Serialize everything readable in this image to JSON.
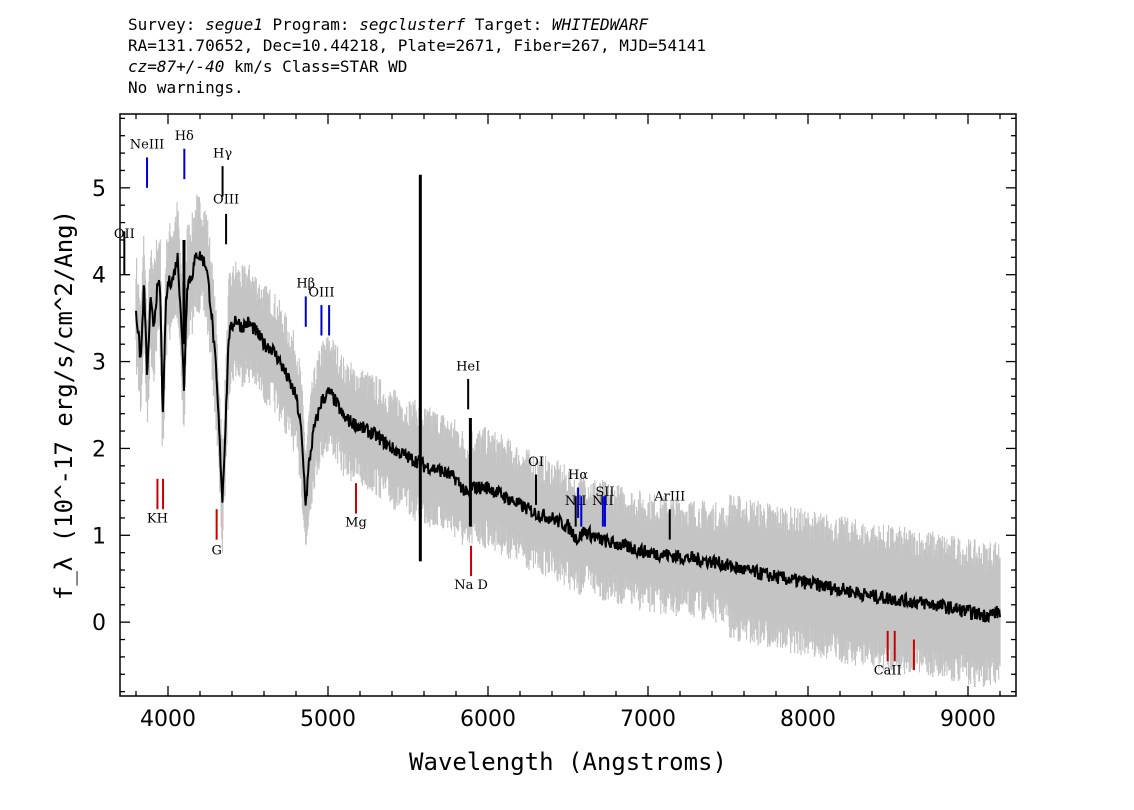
{
  "header": {
    "survey_label": "Survey: ",
    "survey": "segue1",
    "program_label": " Program: ",
    "program": "segclusterf",
    "target_label": " Target: ",
    "target": "WHITEDWARF",
    "line2": "RA=131.70652, Dec=10.44218, Plate=2671, Fiber=267, MJD=54141",
    "cz_label": "cz=87+/-40",
    "line3_rest": " km/s Class=STAR WD",
    "line4": "No warnings."
  },
  "chart_data": {
    "type": "line",
    "xlabel": "Wavelength (Angstroms)",
    "ylabel": "f_λ (10^-17 erg/s/cm^2/Ang)",
    "xlim": [
      3700,
      9300
    ],
    "ylim": [
      -0.85,
      5.85
    ],
    "x_ticks": [
      4000,
      5000,
      6000,
      7000,
      8000,
      9000
    ],
    "y_ticks": [
      0,
      1,
      2,
      3,
      4,
      5
    ],
    "grid": false,
    "series": [
      {
        "color": "#000000",
        "points": [
          [
            3800,
            3.6
          ],
          [
            3830,
            3.0
          ],
          [
            3850,
            3.9
          ],
          [
            3870,
            2.8
          ],
          [
            3890,
            3.7
          ],
          [
            3910,
            3.4
          ],
          [
            3930,
            3.8
          ],
          [
            3950,
            3.9
          ],
          [
            3965,
            2.6
          ],
          [
            3970,
            2.4
          ],
          [
            3985,
            3.6
          ],
          [
            4000,
            3.9
          ],
          [
            4030,
            3.95
          ],
          [
            4060,
            4.2
          ],
          [
            4080,
            3.6
          ],
          [
            4100,
            2.7
          ],
          [
            4120,
            3.9
          ],
          [
            4150,
            4.0
          ],
          [
            4180,
            4.25
          ],
          [
            4210,
            4.2
          ],
          [
            4240,
            4.1
          ],
          [
            4270,
            3.6
          ],
          [
            4300,
            2.9
          ],
          [
            4320,
            2.2
          ],
          [
            4340,
            1.4
          ],
          [
            4360,
            2.3
          ],
          [
            4380,
            3.3
          ],
          [
            4420,
            3.5
          ],
          [
            4460,
            3.4
          ],
          [
            4500,
            3.45
          ],
          [
            4550,
            3.35
          ],
          [
            4600,
            3.2
          ],
          [
            4650,
            3.15
          ],
          [
            4700,
            3.0
          ],
          [
            4750,
            2.8
          ],
          [
            4800,
            2.6
          ],
          [
            4830,
            2.25
          ],
          [
            4850,
            1.7
          ],
          [
            4861,
            1.35
          ],
          [
            4880,
            1.8
          ],
          [
            4910,
            2.2
          ],
          [
            4960,
            2.55
          ],
          [
            5010,
            2.65
          ],
          [
            5060,
            2.5
          ],
          [
            5100,
            2.35
          ],
          [
            5200,
            2.25
          ],
          [
            5300,
            2.15
          ],
          [
            5400,
            2.0
          ],
          [
            5500,
            1.9
          ],
          [
            5560,
            1.85
          ],
          [
            5577,
            1.85
          ],
          [
            5600,
            1.8
          ],
          [
            5700,
            1.75
          ],
          [
            5800,
            1.65
          ],
          [
            5876,
            1.45
          ],
          [
            5900,
            1.55
          ],
          [
            6000,
            1.55
          ],
          [
            6100,
            1.45
          ],
          [
            6200,
            1.35
          ],
          [
            6300,
            1.25
          ],
          [
            6400,
            1.2
          ],
          [
            6500,
            1.1
          ],
          [
            6563,
            0.95
          ],
          [
            6600,
            1.05
          ],
          [
            6700,
            0.95
          ],
          [
            6800,
            0.9
          ],
          [
            6900,
            0.85
          ],
          [
            7000,
            0.8
          ],
          [
            7100,
            0.78
          ],
          [
            7200,
            0.75
          ],
          [
            7400,
            0.7
          ],
          [
            7600,
            0.6
          ],
          [
            7800,
            0.52
          ],
          [
            8000,
            0.45
          ],
          [
            8200,
            0.38
          ],
          [
            8400,
            0.3
          ],
          [
            8600,
            0.25
          ],
          [
            8800,
            0.2
          ],
          [
            9000,
            0.12
          ],
          [
            9100,
            0.08
          ],
          [
            9200,
            0.12
          ]
        ],
        "spikes": [
          [
            5577,
            5.15,
            0.7
          ],
          [
            5890,
            2.35,
            1.1
          ],
          [
            4100,
            4.4,
            3.2
          ]
        ]
      }
    ],
    "line_markers": [
      {
        "label": "NeIII",
        "x": 3869,
        "y1": 5.35,
        "y2": 5.0,
        "color": "#0000cc",
        "ty": 5.45
      },
      {
        "label": "Hδ",
        "x": 4102,
        "y1": 5.45,
        "y2": 5.1,
        "color": "#0000cc",
        "ty": 5.55
      },
      {
        "label": "Hγ",
        "x": 4341,
        "y1": 5.25,
        "y2": 4.9,
        "color": "#000000",
        "ty": 5.35
      },
      {
        "label": "OIII",
        "x": 4363,
        "y1": 4.7,
        "y2": 4.35,
        "color": "#000000",
        "ty": 4.82
      },
      {
        "label": "Hβ",
        "x": 4861,
        "y1": 3.75,
        "y2": 3.4,
        "color": "#0000cc",
        "ty": 3.85
      },
      {
        "label": "OIII",
        "x": 4959,
        "y1": 3.65,
        "y2": 3.3,
        "color": "#0000cc",
        "ty": 3.75
      },
      {
        "label": "",
        "x": 5007,
        "y1": 3.65,
        "y2": 3.3,
        "color": "#0000cc",
        "ty": 0
      },
      {
        "label": "HeI",
        "x": 5876,
        "y1": 2.8,
        "y2": 2.45,
        "color": "#000000",
        "ty": 2.9
      },
      {
        "label": "OI",
        "x": 6300,
        "y1": 1.7,
        "y2": 1.35,
        "color": "#000000",
        "ty": 1.8
      },
      {
        "label": "NII",
        "x": 6548,
        "y1": 1.45,
        "y2": 1.1,
        "color": "#000000",
        "ty": 1.35
      },
      {
        "label": "Hα",
        "x": 6563,
        "y1": 1.55,
        "y2": 1.2,
        "color": "#0000cc",
        "ty": 1.65
      },
      {
        "label": "",
        "x": 6583,
        "y1": 1.45,
        "y2": 1.1,
        "color": "#0000cc",
        "ty": 0
      },
      {
        "label": "NII",
        "x": 6718,
        "y1": 1.45,
        "y2": 1.1,
        "color": "#0000cc",
        "ty": 1.35
      },
      {
        "label": "SII",
        "x": 6731,
        "y1": 1.45,
        "y2": 1.1,
        "color": "#0000cc",
        "ty": 1.45
      },
      {
        "label": "ArIII",
        "x": 7136,
        "y1": 1.3,
        "y2": 0.95,
        "color": "#000000",
        "ty": 1.4
      },
      {
        "label": "KH",
        "x": 3934,
        "y1": 1.65,
        "y2": 1.3,
        "color": "#cc0000",
        "ty": 1.15
      },
      {
        "label": "",
        "x": 3969,
        "y1": 1.65,
        "y2": 1.3,
        "color": "#cc0000",
        "ty": 0
      },
      {
        "label": "G",
        "x": 4304,
        "y1": 1.3,
        "y2": 0.95,
        "color": "#cc0000",
        "ty": 0.78
      },
      {
        "label": "Mg",
        "x": 5175,
        "y1": 1.6,
        "y2": 1.25,
        "color": "#cc0000",
        "ty": 1.1
      },
      {
        "label": "Na D",
        "x": 5894,
        "y1": 0.88,
        "y2": 0.53,
        "color": "#cc0000",
        "ty": 0.38
      },
      {
        "label": "CaII",
        "x": 8498,
        "y1": -0.1,
        "y2": -0.45,
        "color": "#cc0000",
        "ty": -0.6
      },
      {
        "label": "",
        "x": 8542,
        "y1": -0.1,
        "y2": -0.45,
        "color": "#cc0000",
        "ty": 0
      },
      {
        "label": "",
        "x": 8662,
        "y1": -0.2,
        "y2": -0.55,
        "color": "#cc0000",
        "ty": 0
      },
      {
        "label": "OII",
        "x": 3727,
        "y1": 4.5,
        "y2": 4.0,
        "color": "#000000",
        "ty": 4.42
      }
    ]
  }
}
